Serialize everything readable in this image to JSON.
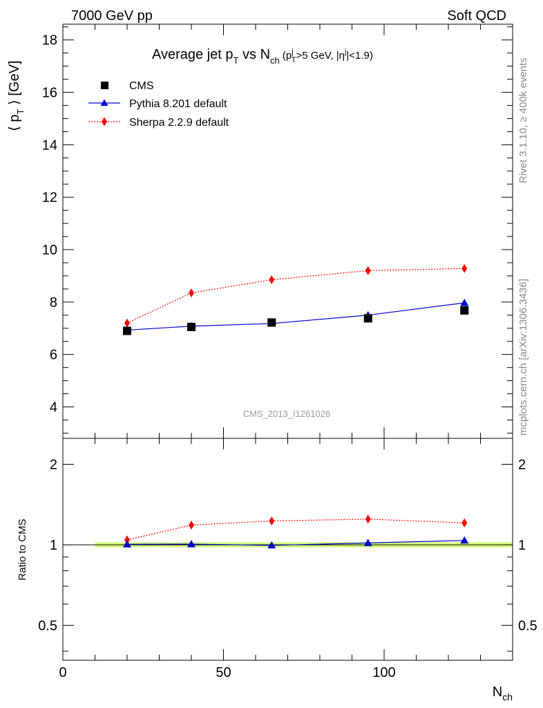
{
  "header": {
    "left": "7000 GeV pp",
    "right": "Soft QCD"
  },
  "side_labels": {
    "rivet": "Rivet 3.1.10, ≥ 400k events",
    "mcplots": "mcplots.cern.ch [arXiv:1306.3436]"
  },
  "chart_data": [
    {
      "type": "scatter",
      "title_parts": {
        "t1": "Average jet p",
        "t1_sub": "T",
        "t2": " vs N",
        "t2_sub": "ch",
        "t3": " (p",
        "t3_sup": "j",
        "t3_sub": "T",
        "t4": ">5 GeV, |η",
        "t4_sup": "j",
        "t5": "|<1.9)"
      },
      "ylabel_parts": {
        "left": "⟨ p",
        "sub": "T",
        "right": " ⟩ [GeV]"
      },
      "watermark": "CMS_2013_I1261026",
      "xlim": [
        0,
        140
      ],
      "ylim": [
        2.8,
        18.6
      ],
      "y_ticks": [
        4,
        6,
        8,
        10,
        12,
        14,
        16,
        18
      ],
      "y_tick_labels": [
        "4",
        "6",
        "8",
        "10",
        "12",
        "14",
        "16",
        "18"
      ],
      "legend_position": "top-left",
      "series": [
        {
          "name": "CMS",
          "marker": "square",
          "color": "#000000",
          "line": "none",
          "x": [
            20,
            40,
            65,
            95,
            125
          ],
          "y": [
            6.9,
            7.05,
            7.22,
            7.38,
            7.68
          ]
        },
        {
          "name": "Pythia 8.201 default",
          "marker": "triangle",
          "color": "#0000cc",
          "line": "solid",
          "x": [
            20,
            40,
            65,
            95,
            125
          ],
          "y": [
            6.93,
            7.08,
            7.18,
            7.5,
            7.97
          ]
        },
        {
          "name": "Sherpa 2.2.9 default",
          "marker": "diamond",
          "color": "#ff0000",
          "line": "dotted",
          "x": [
            20,
            40,
            65,
            95,
            125
          ],
          "y": [
            7.2,
            8.35,
            8.85,
            9.2,
            9.28
          ]
        }
      ]
    },
    {
      "type": "scatter",
      "ylabel": "Ratio to CMS",
      "xlabel_parts": {
        "main": "N",
        "sub": "ch"
      },
      "xlim": [
        0,
        140
      ],
      "ylim": [
        0.37,
        2.5
      ],
      "log_y": true,
      "x_ticks": [
        0,
        50,
        100
      ],
      "x_tick_labels": [
        "0",
        "50",
        "100"
      ],
      "y_ticks": [
        0.5,
        1,
        2
      ],
      "y_tick_labels": [
        "0.5",
        "1",
        "2"
      ],
      "band": {
        "color": "#ccff66",
        "x_range": [
          10,
          140
        ],
        "half_width": 0.01
      },
      "series": [
        {
          "name": "Pythia 8.201 default",
          "marker": "triangle",
          "color": "#0000cc",
          "line": "solid",
          "x": [
            20,
            40,
            65,
            95,
            125
          ],
          "y": [
            1.004,
            1.006,
            0.995,
            1.016,
            1.038
          ]
        },
        {
          "name": "Sherpa 2.2.9 default",
          "marker": "diamond",
          "color": "#ff0000",
          "line": "dotted",
          "x": [
            20,
            40,
            65,
            95,
            125
          ],
          "y": [
            1.043,
            1.185,
            1.228,
            1.247,
            1.208
          ]
        }
      ]
    }
  ]
}
